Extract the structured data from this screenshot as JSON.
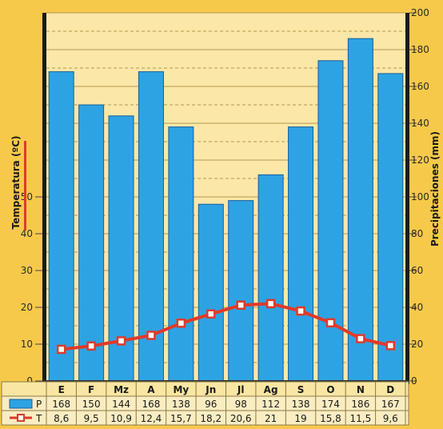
{
  "chart_data": {
    "type": "bar",
    "title": "",
    "categories": [
      "E",
      "F",
      "Mz",
      "A",
      "My",
      "Jn",
      "Jl",
      "Ag",
      "S",
      "O",
      "N",
      "D"
    ],
    "series": [
      {
        "name": "P",
        "type": "bar",
        "axis": "right",
        "values": [
          168,
          150,
          144,
          168,
          138,
          96,
          98,
          112,
          138,
          174,
          186,
          167
        ],
        "display": [
          "168",
          "150",
          "144",
          "168",
          "138",
          "96",
          "98",
          "112",
          "138",
          "174",
          "186",
          "167"
        ]
      },
      {
        "name": "T",
        "type": "line",
        "axis": "left",
        "values": [
          8.6,
          9.5,
          10.9,
          12.4,
          15.7,
          18.2,
          20.6,
          21,
          19,
          15.8,
          11.5,
          9.6
        ],
        "display": [
          "8,6",
          "9,5",
          "10,9",
          "12,4",
          "15,7",
          "18,2",
          "20,6",
          "21",
          "19",
          "15,8",
          "11,5",
          "9,6"
        ]
      }
    ],
    "y_left": {
      "label": "Temperatura (ºC)",
      "ticks": [
        0,
        10,
        20,
        30,
        40,
        50
      ],
      "range": [
        0,
        100
      ]
    },
    "y_right": {
      "label": "Precipitaciones (mm)",
      "ticks": [
        0,
        20,
        40,
        60,
        80,
        100,
        120,
        140,
        160,
        180,
        200
      ],
      "range": [
        0,
        200
      ]
    },
    "grid": true,
    "legend": "table-bottom",
    "colors": {
      "bar": "#2ea3e4",
      "bar_edge": "#175f99",
      "line": "#e03a2a",
      "marker_fill": "#ffffff",
      "background": "#f6c94a",
      "plot_background": "#fbe7a8",
      "grid": "#b3994f",
      "axis_bar": "#1a1a1a"
    }
  }
}
